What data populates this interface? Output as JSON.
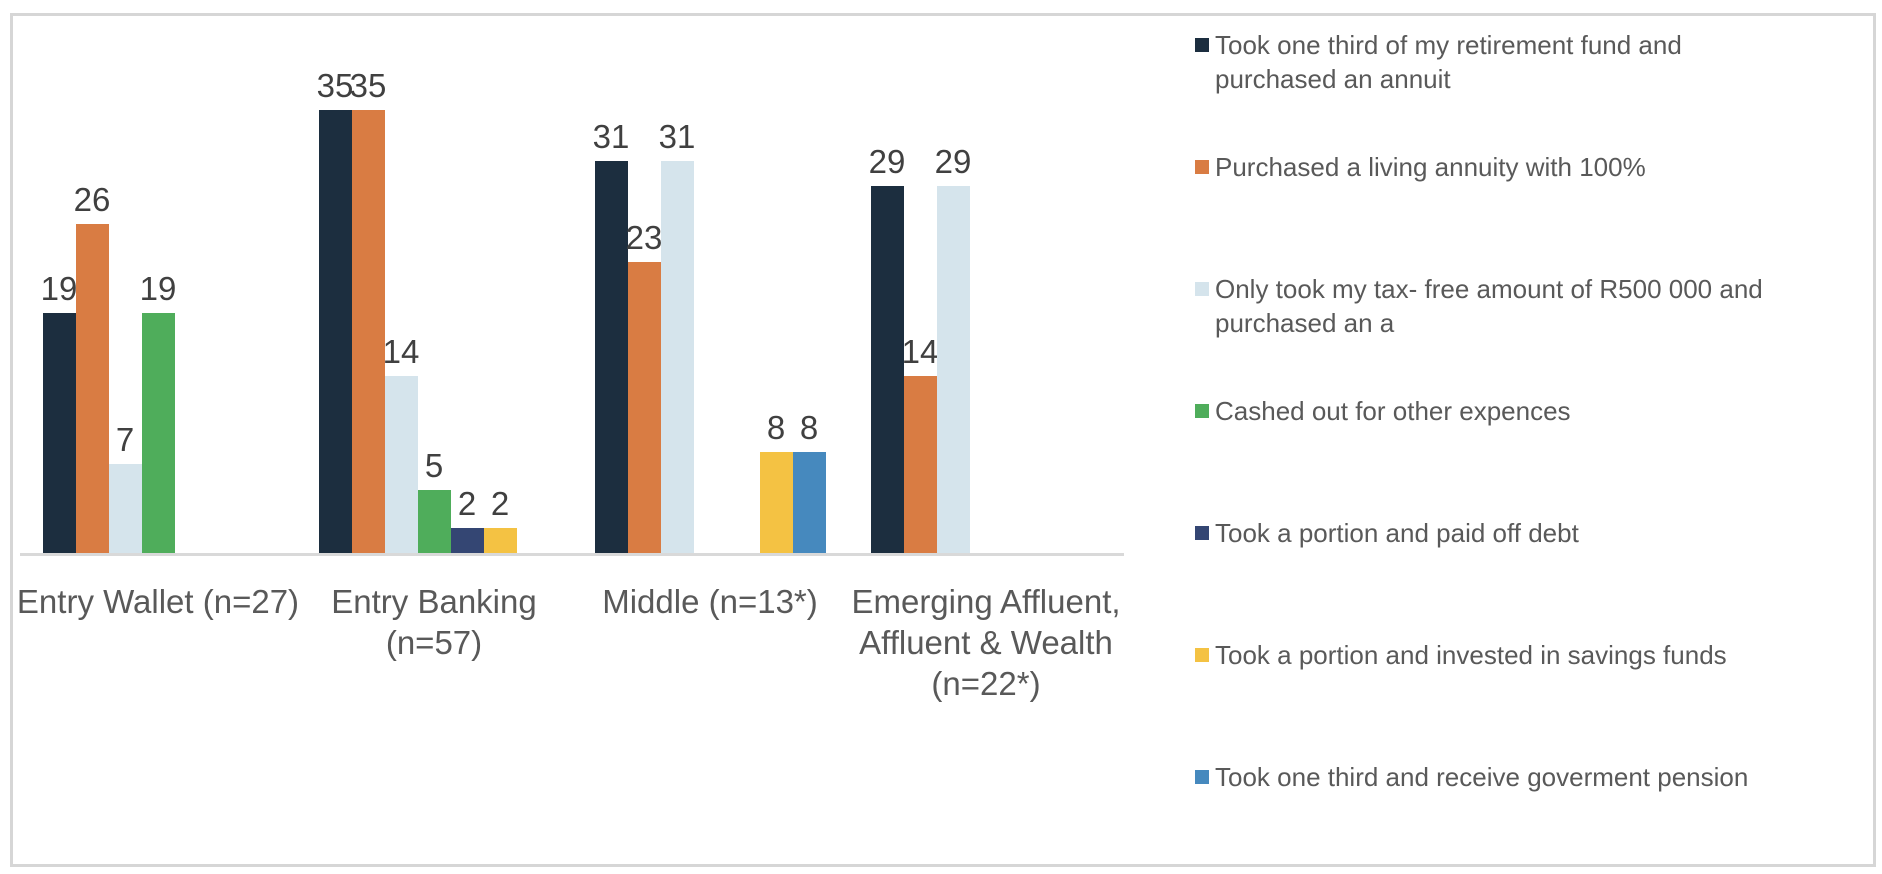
{
  "chart_data": {
    "type": "bar",
    "title": "",
    "categories": [
      "Entry Wallet (n=27)",
      "Entry Banking\n(n=57)",
      "Middle (n=13*)",
      "Emerging Affluent,\nAffluent & Wealth\n(n=22*)"
    ],
    "series": [
      {
        "name": "Took one third of my retirement fund and\npurchased an annuit",
        "color": "#1c2e3f",
        "values": [
          19,
          35,
          31,
          29
        ]
      },
      {
        "name": "Purchased a living annuity with 100%",
        "color": "#d97c43",
        "values": [
          26,
          35,
          23,
          14
        ]
      },
      {
        "name": "Only took my tax- free amount of R500 000 and\npurchased an a",
        "color": "#d5e4ec",
        "values": [
          7,
          14,
          31,
          29
        ]
      },
      {
        "name": "Cashed out for other expences",
        "color": "#4fad5b",
        "values": [
          19,
          5,
          0,
          0
        ]
      },
      {
        "name": "Took a portion and paid off debt",
        "color": "#344673",
        "values": [
          0,
          2,
          0,
          0
        ]
      },
      {
        "name": "Took a portion and invested in savings funds",
        "color": "#f4c243",
        "values": [
          0,
          2,
          8,
          0
        ]
      },
      {
        "name": "Took one third and receive goverment pension",
        "color": "#4689be",
        "values": [
          0,
          0,
          8,
          0
        ]
      }
    ],
    "value_axis": {
      "min": 0,
      "max_visible": 35,
      "gridlines": false,
      "axis_labels_visible": false
    },
    "data_labels": true,
    "legend_position": "right",
    "colors": {
      "axis_line": "#d9d9d9",
      "frame_border": "#d6d6d6",
      "data_label_text": "#404040",
      "category_label_text": "#595959",
      "legend_text": "#595959",
      "background": "#ffffff"
    }
  }
}
